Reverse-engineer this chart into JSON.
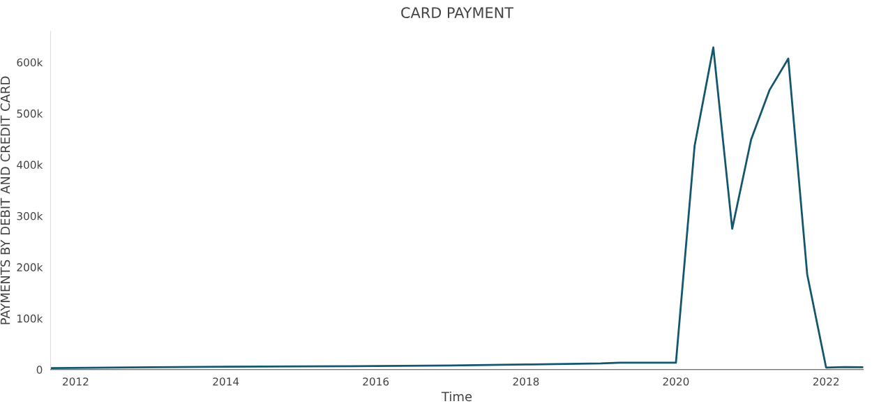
{
  "chart_data": {
    "type": "line",
    "title": "CARD PAYMENT",
    "xlabel": "Time",
    "ylabel": "PAYMENTS BY DEBIT AND CREDIT CARD",
    "x": [
      "2011-09",
      "2013-01",
      "2014-01",
      "2015-01",
      "2016-01",
      "2017-01",
      "2018-01",
      "2019-01",
      "2019-04",
      "2019-07",
      "2019-10",
      "2020-01",
      "2020-04",
      "2020-07",
      "2020-10",
      "2021-01",
      "2021-04",
      "2021-07",
      "2021-10",
      "2022-01",
      "2022-04",
      "2022-07"
    ],
    "series": [
      {
        "color": "#13566e",
        "values": [
          3000,
          4500,
          5500,
          6200,
          7000,
          8000,
          10000,
          12000,
          13500,
          13500,
          13500,
          13500,
          437000,
          629000,
          275000,
          449000,
          546000,
          607000,
          186000,
          4000,
          5000,
          4500
        ]
      }
    ],
    "xlim": [
      "2011-09",
      "2022-07"
    ],
    "xticks": [
      "2012",
      "2014",
      "2016",
      "2018",
      "2020",
      "2022"
    ],
    "ylim": [
      0,
      660000
    ],
    "yticks": [
      {
        "value": 0,
        "label": "0"
      },
      {
        "value": 100000,
        "label": "100k"
      },
      {
        "value": 200000,
        "label": "200k"
      },
      {
        "value": 300000,
        "label": "300k"
      },
      {
        "value": 400000,
        "label": "400k"
      },
      {
        "value": 500000,
        "label": "500k"
      },
      {
        "value": 600000,
        "label": "600k"
      }
    ],
    "grid": false,
    "legend": false,
    "marker": "none",
    "line_style": "solid"
  }
}
